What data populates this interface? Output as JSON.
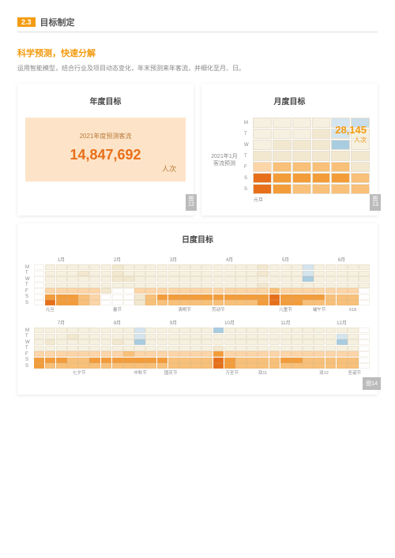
{
  "section": {
    "num": "2.3",
    "title": "目标制定"
  },
  "sub": {
    "title": "科学预测，快速分解",
    "desc": "运用智能模型，结合行业及项目动态变化，年末预测来年客流，并细化至月、日。"
  },
  "annual": {
    "title": "年度目标",
    "label": "2021年度预测客流",
    "value": "14,847,692",
    "unit": "人次",
    "tag": "图12",
    "color": "#e76f1a"
  },
  "monthly": {
    "title": "月度目标",
    "side": "2021年1月\n客流预测",
    "value": "28,145",
    "unit": "人次",
    "foot": "元旦",
    "tag": "图13",
    "color": "#f39c12",
    "weekdays": [
      "M",
      "T",
      "W",
      "T",
      "F",
      "S",
      "S"
    ],
    "cells": [
      [
        "#f5f0e0",
        "#f5f0e0",
        "#f5f0e0",
        "#f5f0e0",
        "#d5e5f0",
        "#c8dcea"
      ],
      [
        "#f5f0e0",
        "#f5f0e0",
        "#f5f0e0",
        "#f2e8d0",
        "#d5e5f0",
        "#f5f0e0"
      ],
      [
        "#f5f0e0",
        "#f2e8d0",
        "#f2e8d0",
        "#f2e8d0",
        "#a8cce0",
        "#f5f0e0"
      ],
      [
        "#f2e8d0",
        "#f2e8d0",
        "#f2e8d0",
        "#f2e8d0",
        "#f2e8d0",
        "#f2e8d0"
      ],
      [
        "#fcd5a8",
        "#f8c078",
        "#f8c078",
        "#f8c078",
        "#f8c078",
        "#f2e8d0"
      ],
      [
        "#e76f1a",
        "#f39c3a",
        "#f39c3a",
        "#f39c3a",
        "#f39c3a",
        "#f8c078"
      ],
      [
        "#e76f1a",
        "#f39c3a",
        "#f8c078",
        "#f8c078",
        "#f8c078",
        "#f8c078"
      ]
    ]
  },
  "daily": {
    "title": "日度目标",
    "tag": "图14",
    "cols": 30,
    "weekdays": [
      "M",
      "T",
      "W",
      "T",
      "F",
      "S",
      "S"
    ],
    "months1": [
      "1月",
      "2月",
      "3月",
      "4月",
      "5月",
      "6月"
    ],
    "months2": [
      "7月",
      "8月",
      "9月",
      "10月",
      "11月",
      "12月"
    ],
    "holidays1": [
      "元旦",
      "",
      "春节",
      "",
      "清明节",
      "劳动节",
      "",
      "儿童节",
      "端午节",
      "618"
    ],
    "holidays2": [
      "",
      "七夕节",
      "",
      "中秋节",
      "国庆节",
      "",
      "万圣节",
      "双11",
      "",
      "双12",
      "圣诞节"
    ],
    "palette": {
      "0": "#ffffff",
      "1": "#f5f0e0",
      "2": "#f2e8d0",
      "3": "#fcd5a8",
      "4": "#f8c078",
      "5": "#f39c3a",
      "6": "#e76f1a",
      "7": "#d5e5f0",
      "8": "#a8cce0"
    },
    "half1": [
      "011111121111111111112111711111",
      "011121121111111111112111711111",
      "011111122111111111111111811111",
      "011111111111111111112111111111",
      "033333200333333333333433333330",
      "055543000245555555555655554440",
      "065543000244444444445655444440"
    ],
    "half2": [
      "111111111711111181111111111110",
      "111211111711111111111111111710",
      "121111121811111111111111111810",
      "111111111111111121111111111110",
      "333333334333333353333333333330",
      "555445555555444465444455444440",
      "544444444444444465444444444440"
    ]
  }
}
